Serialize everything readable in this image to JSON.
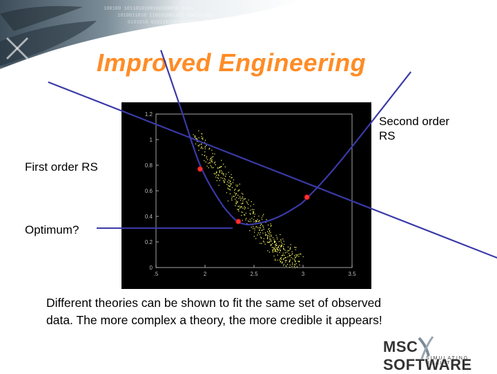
{
  "slide": {
    "title": "Improved Engineering",
    "callouts": {
      "second_order_line1": "Second order",
      "second_order_line2": "RS",
      "first_order": "First order RS",
      "optimum": "Optimum?"
    },
    "caption_line1": "Different theories can be shown to fit the same set of observed",
    "caption_line2": "data. The more complex a theory, the more credible it appears!"
  },
  "logo": {
    "brand_left": "MSC",
    "brand_right": "SOFTWARE",
    "tagline": "SIMULATING REALITY"
  },
  "colors": {
    "title": "#ff8c26",
    "curve": "#3a3aa8",
    "points": "#ffff66",
    "marker": "#ff3030",
    "banner": "#4a5a66"
  },
  "chart_data": {
    "type": "scatter",
    "xlim": [
      1.5,
      3.5
    ],
    "ylim": [
      0,
      1.2
    ],
    "x_ticks": [
      ".5",
      "2",
      "2.5",
      "3",
      "3.5"
    ],
    "y_ticks": [
      "0",
      "0.2",
      "0.4",
      "0.6",
      "0.8",
      "1",
      "1.2"
    ],
    "grid": false,
    "series": [
      {
        "kind": "points",
        "point_cloud": "band from (1.9, 1.05) down to (3.0, 0.0)"
      },
      {
        "kind": "line",
        "x": [
          0.4,
          5.0
        ],
        "y": [
          1.45,
          0.07
        ]
      },
      {
        "kind": "curve",
        "x": [
          1.55,
          1.75,
          1.95,
          2.15,
          2.3,
          2.4,
          2.5,
          2.7,
          2.9,
          3.05,
          3.4,
          4.1
        ],
        "y": [
          1.7,
          1.25,
          0.8,
          0.52,
          0.38,
          0.34,
          0.34,
          0.38,
          0.46,
          0.55,
          0.85,
          1.53
        ]
      },
      {
        "kind": "markers",
        "x": [
          1.95,
          2.34,
          3.04
        ],
        "y": [
          0.77,
          0.36,
          0.55
        ]
      }
    ]
  }
}
